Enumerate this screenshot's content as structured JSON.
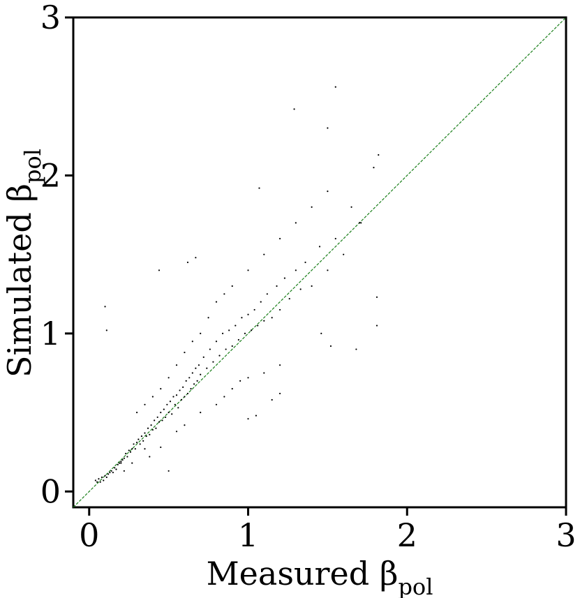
{
  "chart_data": {
    "type": "scatter",
    "xlabel": "Measured β",
    "xlabel_subscript": "pol",
    "ylabel": "Simulated β",
    "ylabel_subscript": "pol",
    "xlim": [
      -0.1,
      3
    ],
    "ylim": [
      -0.1,
      3
    ],
    "xticks": [
      0,
      1,
      2,
      3
    ],
    "yticks": [
      0,
      1,
      2,
      3
    ],
    "xtick_labels": [
      "0",
      "1",
      "2",
      "3"
    ],
    "ytick_labels": [
      "0",
      "1",
      "2",
      "3"
    ],
    "grid": false,
    "reference_line": {
      "x": [
        -0.1,
        3
      ],
      "y": [
        -0.1,
        3
      ],
      "style": "dashed",
      "color": "#1a7f1a"
    },
    "point_color": "#000000",
    "series": [
      {
        "points": [
          [
            0.04,
            0.07
          ],
          [
            0.05,
            0.06
          ],
          [
            0.06,
            0.08
          ],
          [
            0.07,
            0.06
          ],
          [
            0.08,
            0.09
          ],
          [
            0.09,
            0.07
          ],
          [
            0.1,
            0.1
          ],
          [
            0.11,
            0.09
          ],
          [
            0.12,
            0.11
          ],
          [
            0.13,
            0.12
          ],
          [
            0.14,
            0.13
          ],
          [
            0.15,
            0.12
          ],
          [
            0.16,
            0.15
          ],
          [
            0.17,
            0.14
          ],
          [
            0.18,
            0.17
          ],
          [
            0.19,
            0.18
          ],
          [
            0.2,
            0.19
          ],
          [
            0.21,
            0.2
          ],
          [
            0.22,
            0.21
          ],
          [
            0.23,
            0.24
          ],
          [
            0.24,
            0.22
          ],
          [
            0.25,
            0.26
          ],
          [
            0.26,
            0.25
          ],
          [
            0.27,
            0.27
          ],
          [
            0.28,
            0.3
          ],
          [
            0.29,
            0.27
          ],
          [
            0.3,
            0.31
          ],
          [
            0.31,
            0.33
          ],
          [
            0.32,
            0.3
          ],
          [
            0.33,
            0.35
          ],
          [
            0.34,
            0.32
          ],
          [
            0.35,
            0.37
          ],
          [
            0.36,
            0.35
          ],
          [
            0.37,
            0.4
          ],
          [
            0.38,
            0.36
          ],
          [
            0.39,
            0.42
          ],
          [
            0.4,
            0.39
          ],
          [
            0.41,
            0.45
          ],
          [
            0.42,
            0.4
          ],
          [
            0.43,
            0.47
          ],
          [
            0.44,
            0.44
          ],
          [
            0.45,
            0.5
          ],
          [
            0.46,
            0.45
          ],
          [
            0.47,
            0.52
          ],
          [
            0.48,
            0.47
          ],
          [
            0.49,
            0.55
          ],
          [
            0.5,
            0.5
          ],
          [
            0.51,
            0.57
          ],
          [
            0.52,
            0.49
          ],
          [
            0.53,
            0.6
          ],
          [
            0.54,
            0.55
          ],
          [
            0.55,
            0.61
          ],
          [
            0.56,
            0.53
          ],
          [
            0.57,
            0.64
          ],
          [
            0.58,
            0.58
          ],
          [
            0.59,
            0.66
          ],
          [
            0.6,
            0.6
          ],
          [
            0.61,
            0.7
          ],
          [
            0.62,
            0.62
          ],
          [
            0.63,
            0.72
          ],
          [
            0.64,
            0.65
          ],
          [
            0.65,
            0.75
          ],
          [
            0.66,
            0.68
          ],
          [
            0.67,
            0.78
          ],
          [
            0.68,
            0.7
          ],
          [
            0.69,
            0.8
          ],
          [
            0.7,
            0.74
          ],
          [
            0.72,
            0.85
          ],
          [
            0.74,
            0.78
          ],
          [
            0.76,
            0.9
          ],
          [
            0.78,
            0.82
          ],
          [
            0.8,
            0.95
          ],
          [
            0.82,
            0.86
          ],
          [
            0.84,
            1.0
          ],
          [
            0.86,
            0.9
          ],
          [
            0.88,
            1.02
          ],
          [
            0.9,
            0.92
          ],
          [
            0.92,
            1.05
          ],
          [
            0.94,
            0.96
          ],
          [
            0.96,
            1.1
          ],
          [
            0.98,
            1.0
          ],
          [
            1.0,
            1.12
          ],
          [
            1.02,
            1.02
          ],
          [
            1.04,
            1.15
          ],
          [
            1.06,
            1.05
          ],
          [
            1.08,
            1.2
          ],
          [
            1.1,
            1.08
          ],
          [
            1.12,
            1.25
          ],
          [
            1.15,
            1.1
          ],
          [
            1.18,
            1.3
          ],
          [
            1.2,
            1.15
          ],
          [
            1.23,
            1.35
          ],
          [
            1.26,
            1.22
          ],
          [
            1.3,
            1.4
          ],
          [
            1.33,
            1.28
          ],
          [
            1.36,
            1.45
          ],
          [
            1.4,
            1.3
          ],
          [
            1.45,
            1.55
          ],
          [
            1.5,
            1.4
          ],
          [
            1.55,
            1.6
          ],
          [
            1.6,
            1.5
          ],
          [
            1.7,
            1.7
          ],
          [
            0.1,
            1.17
          ],
          [
            0.11,
            1.02
          ],
          [
            0.44,
            1.4
          ],
          [
            0.62,
            1.45
          ],
          [
            0.67,
            1.48
          ],
          [
            1.55,
            2.56
          ],
          [
            1.29,
            2.42
          ],
          [
            1.5,
            2.3
          ],
          [
            1.82,
            2.13
          ],
          [
            1.79,
            2.05
          ],
          [
            1.71,
            1.7
          ],
          [
            1.65,
            1.8
          ],
          [
            1.07,
            1.92
          ],
          [
            1.81,
            1.23
          ],
          [
            1.81,
            1.05
          ],
          [
            1.68,
            0.9
          ],
          [
            1.52,
            0.92
          ],
          [
            1.46,
            1.0
          ],
          [
            1.15,
            0.58
          ],
          [
            1.2,
            0.62
          ],
          [
            1.05,
            0.48
          ],
          [
            1.0,
            0.46
          ],
          [
            0.5,
            0.13
          ],
          [
            0.22,
            0.13
          ],
          [
            0.2,
            0.18
          ],
          [
            0.27,
            0.18
          ],
          [
            0.35,
            0.27
          ],
          [
            0.38,
            0.22
          ],
          [
            0.45,
            0.28
          ],
          [
            0.55,
            0.38
          ],
          [
            0.6,
            0.42
          ],
          [
            0.7,
            0.5
          ],
          [
            0.8,
            0.55
          ],
          [
            0.85,
            0.6
          ],
          [
            0.9,
            0.65
          ],
          [
            0.95,
            0.7
          ],
          [
            1.0,
            0.72
          ],
          [
            1.1,
            0.75
          ],
          [
            1.2,
            0.8
          ],
          [
            0.3,
            0.5
          ],
          [
            0.35,
            0.55
          ],
          [
            0.4,
            0.6
          ],
          [
            0.45,
            0.65
          ],
          [
            0.5,
            0.72
          ],
          [
            0.55,
            0.8
          ],
          [
            0.6,
            0.88
          ],
          [
            0.65,
            0.95
          ],
          [
            0.7,
            1.0
          ],
          [
            0.75,
            1.1
          ],
          [
            0.8,
            1.2
          ],
          [
            0.85,
            1.25
          ],
          [
            0.9,
            1.3
          ],
          [
            1.0,
            1.4
          ],
          [
            1.1,
            1.5
          ],
          [
            1.2,
            1.6
          ],
          [
            1.3,
            1.7
          ],
          [
            1.4,
            1.8
          ],
          [
            1.5,
            1.9
          ]
        ]
      }
    ]
  }
}
